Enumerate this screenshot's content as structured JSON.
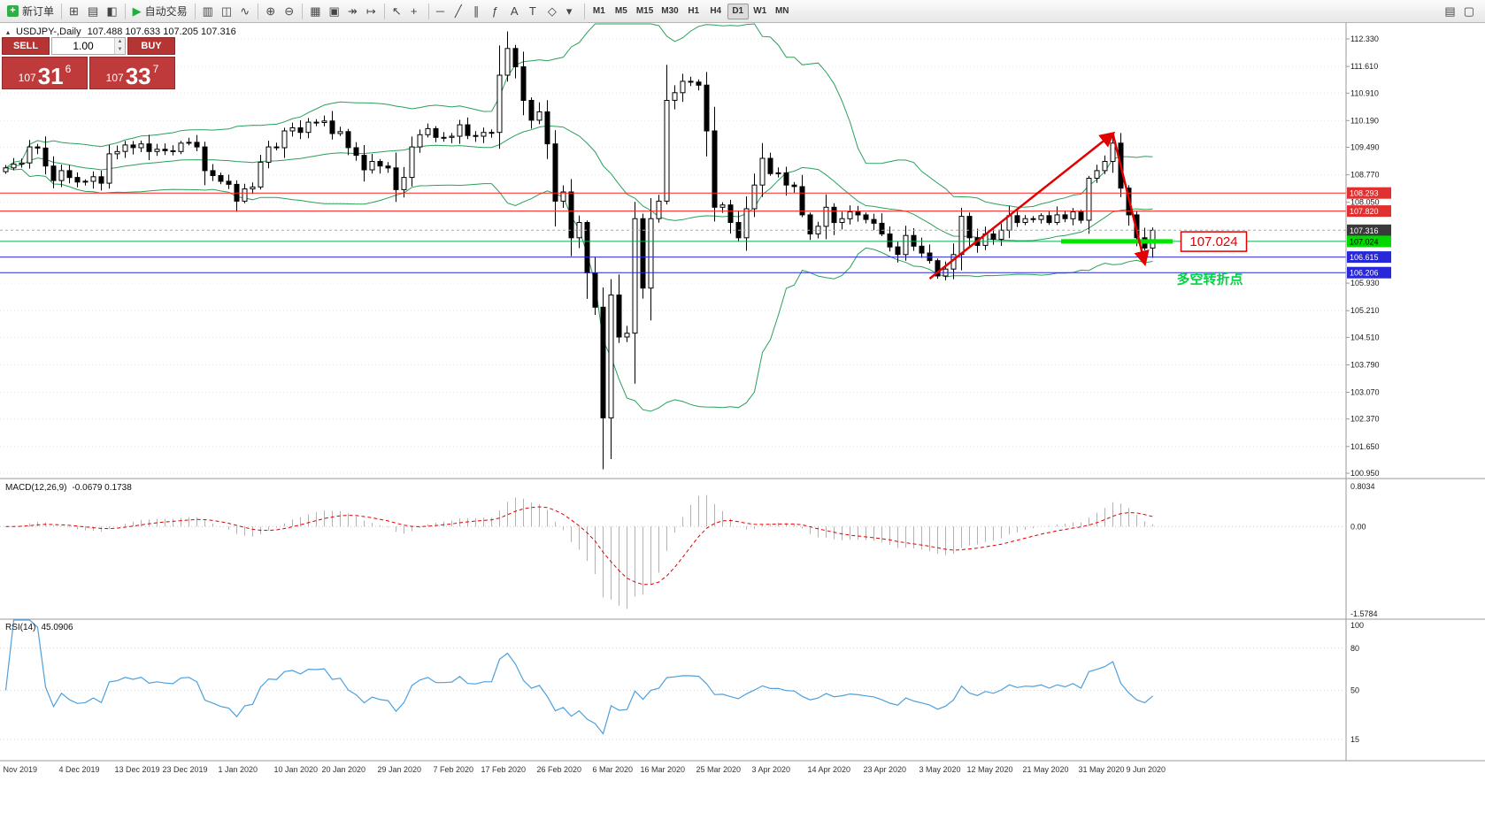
{
  "toolbar": {
    "items": [
      {
        "t": "i",
        "name": "new-order",
        "label": "新订单"
      },
      {
        "t": "s"
      },
      {
        "t": "i",
        "name": "charts-grid"
      },
      {
        "t": "i",
        "name": "profiles"
      },
      {
        "t": "i",
        "name": "market-watch"
      },
      {
        "t": "s"
      },
      {
        "t": "i",
        "name": "auto-trading",
        "label": "自动交易"
      },
      {
        "t": "s"
      },
      {
        "t": "i",
        "name": "bar-chart"
      },
      {
        "t": "i",
        "name": "candlestick-chart"
      },
      {
        "t": "i",
        "name": "line-chart"
      },
      {
        "t": "s"
      },
      {
        "t": "i",
        "name": "zoom-in"
      },
      {
        "t": "i",
        "name": "zoom-out"
      },
      {
        "t": "s"
      },
      {
        "t": "i",
        "name": "tile-windows"
      },
      {
        "t": "i",
        "name": "new-chart"
      },
      {
        "t": "i",
        "name": "auto-scroll"
      },
      {
        "t": "i",
        "name": "chart-shift"
      },
      {
        "t": "s"
      },
      {
        "t": "i",
        "name": "cursor"
      },
      {
        "t": "i",
        "name": "crosshair"
      },
      {
        "t": "s"
      },
      {
        "t": "i",
        "name": "horizontal-line"
      },
      {
        "t": "i",
        "name": "trendline"
      },
      {
        "t": "i",
        "name": "equidistant-channel"
      },
      {
        "t": "i",
        "name": "fibonacci"
      },
      {
        "t": "i",
        "name": "text"
      },
      {
        "t": "i",
        "name": "text-label"
      },
      {
        "t": "i",
        "name": "shapes"
      },
      {
        "t": "i",
        "name": "dropdown-arrow"
      },
      {
        "t": "s"
      }
    ],
    "right_items": [
      {
        "t": "i",
        "name": "indicators-list"
      },
      {
        "t": "i",
        "name": "objects-list"
      }
    ],
    "timeframes": [
      "M1",
      "M5",
      "M15",
      "M30",
      "H1",
      "H4",
      "D1",
      "W1",
      "MN"
    ],
    "active_timeframe": "D1"
  },
  "chart": {
    "collapse_icon": "▴",
    "symbol_title": "USDJPY-,Daily",
    "ohlc_readout": "107.488 107.633 107.205 107.316"
  },
  "indicators": {
    "macd_label": "MACD(12,26,9)",
    "macd_values": "-0.0679 0.1738",
    "rsi_label": "RSI(14)",
    "rsi_value": "45.0906"
  },
  "trade_panel": {
    "sell_label": "SELL",
    "buy_label": "BUY",
    "volume": "1.00",
    "volume_up_icon": "▲",
    "volume_down_icon": "▼",
    "sell_price": {
      "base": "107",
      "big": "31",
      "sup": "6"
    },
    "buy_price": {
      "base": "107",
      "big": "33",
      "sup": "7"
    }
  },
  "chart_data": {
    "type": "candlestick",
    "symbol": "USDJPY",
    "period": "Daily",
    "bollinger": {
      "period": 20,
      "deviation": 2
    },
    "closes": [
      108.95,
      109.05,
      109.08,
      109.5,
      109.47,
      109.0,
      108.62,
      108.88,
      108.7,
      108.58,
      108.6,
      108.72,
      108.55,
      109.32,
      109.38,
      109.55,
      109.48,
      109.58,
      109.38,
      109.44,
      109.4,
      109.38,
      109.6,
      109.62,
      109.5,
      108.88,
      108.75,
      108.6,
      108.52,
      108.08,
      108.4,
      108.45,
      109.1,
      109.5,
      109.48,
      109.92,
      110.0,
      109.88,
      110.15,
      110.14,
      110.18,
      109.85,
      109.9,
      109.48,
      109.28,
      108.9,
      109.12,
      109.0,
      108.95,
      108.38,
      108.7,
      109.5,
      109.82,
      109.98,
      109.75,
      109.75,
      109.78,
      110.08,
      109.8,
      109.78,
      109.88,
      109.88,
      111.38,
      112.08,
      111.6,
      110.72,
      110.2,
      110.42,
      109.58,
      108.08,
      108.32,
      107.12,
      107.52,
      106.2,
      105.3,
      102.4,
      105.62,
      104.52,
      104.62,
      107.62,
      105.8,
      107.62,
      108.08,
      110.72,
      110.92,
      111.22,
      111.2,
      111.12,
      109.92,
      107.92,
      107.98,
      107.52,
      107.12,
      107.88,
      108.5,
      109.2,
      108.8,
      108.82,
      108.5,
      108.46,
      107.72,
      107.22,
      107.42,
      107.92,
      107.52,
      107.62,
      107.8,
      107.72,
      107.6,
      107.5,
      107.22,
      106.88,
      106.68,
      107.18,
      106.9,
      106.72,
      106.52,
      106.12,
      106.3,
      106.68,
      107.68,
      107.12,
      106.92,
      107.22,
      107.08,
      107.32,
      107.7,
      107.52,
      107.62,
      107.6,
      107.7,
      107.52,
      107.72,
      107.62,
      107.8,
      107.58,
      108.68,
      108.88,
      109.12,
      109.6,
      108.42,
      107.72,
      107.12,
      106.85,
      107.316
    ],
    "x_labels": [
      [
        0,
        "Nov 2019"
      ],
      [
        7,
        "4 Dec 2019"
      ],
      [
        14,
        "13 Dec 2019"
      ],
      [
        20,
        "23 Dec 2019"
      ],
      [
        27,
        "1 Jan 2020"
      ],
      [
        34,
        "10 Jan 2020"
      ],
      [
        40,
        "20 Jan 2020"
      ],
      [
        47,
        "29 Jan 2020"
      ],
      [
        54,
        "7 Feb 2020"
      ],
      [
        60,
        "17 Feb 2020"
      ],
      [
        67,
        "26 Feb 2020"
      ],
      [
        74,
        "6 Mar 2020"
      ],
      [
        80,
        "16 Mar 2020"
      ],
      [
        87,
        "25 Mar 2020"
      ],
      [
        94,
        "3 Apr 2020"
      ],
      [
        101,
        "14 Apr 2020"
      ],
      [
        108,
        "23 Apr 2020"
      ],
      [
        115,
        "3 May 2020"
      ],
      [
        121,
        "12 May 2020"
      ],
      [
        128,
        "21 May 2020"
      ],
      [
        135,
        "31 May 2020"
      ],
      [
        141,
        "9 Jun 2020"
      ]
    ],
    "price_ticks": [
      "112.330",
      "111.610",
      "110.910",
      "110.190",
      "109.490",
      "108.770",
      "108.050",
      "105.930",
      "105.210",
      "104.510",
      "103.790",
      "103.070",
      "102.370",
      "101.650",
      "100.950"
    ],
    "macd_axis": [
      "0.8034",
      "0.00",
      "-1.5784"
    ],
    "rsi_axis": [
      "100",
      "80",
      "50",
      "15"
    ],
    "current_price": 107.316,
    "levels": [
      {
        "price": 108.293,
        "color": "#ff2020",
        "dash": "",
        "badge_bg": "#e03030",
        "badge_fg": "#ffffff",
        "label": "108.293"
      },
      {
        "price": 107.82,
        "color": "#ff2020",
        "dash": "",
        "badge_bg": "#e03030",
        "badge_fg": "#ffffff",
        "label": "107.820"
      },
      {
        "price": 107.316,
        "color": "#a8a8a8",
        "dash": "3,3",
        "badge_bg": "#3a3a3a",
        "badge_fg": "#ffffff",
        "label": "107.316"
      },
      {
        "price": 107.024,
        "color": "#00b050",
        "dash": "",
        "badge_bg": "#00d800",
        "badge_fg": "#000000",
        "label": "107.024"
      },
      {
        "price": 106.615,
        "color": "#2828d8",
        "dash": "",
        "badge_bg": "#2828d8",
        "badge_fg": "#ffffff",
        "label": "106.615"
      },
      {
        "price": 106.206,
        "color": "#2828d8",
        "dash": "",
        "badge_bg": "#2828d8",
        "badge_fg": "#ffffff",
        "label": "106.206"
      }
    ],
    "annotations": {
      "trend": {
        "color": "#e20000",
        "segments": [
          [
            [
              116,
              106.05
            ],
            [
              139,
              109.85
            ]
          ],
          [
            [
              139,
              109.85
            ],
            [
              143,
              106.45
            ]
          ]
        ]
      },
      "support_segment": {
        "price": 107.024,
        "from_index": 132.5,
        "to_index": 146.5,
        "color": "#00e600"
      },
      "price_tag": {
        "text": "107.024",
        "index": 148,
        "price": 107.02,
        "color": "#e20000"
      },
      "note": {
        "text": "多空转折点",
        "index": 147,
        "price": 105.92,
        "color": "#00d544"
      }
    }
  }
}
